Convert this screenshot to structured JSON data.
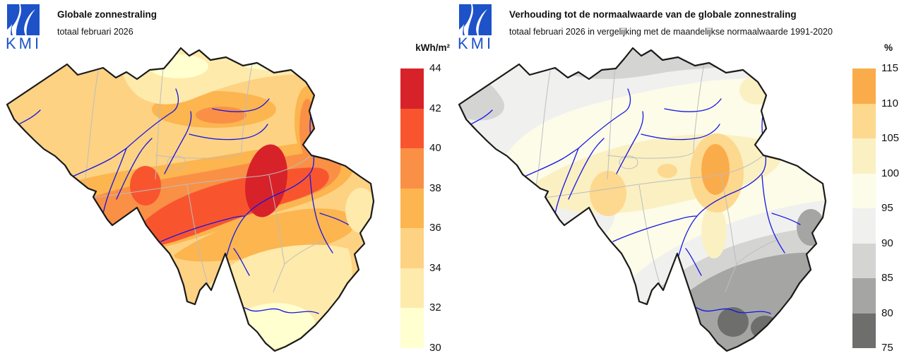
{
  "brand": {
    "logo_text": "KMI"
  },
  "style": {
    "brand_blue": "#1d52c8",
    "river_color": "#1414e8",
    "province_border_color": "#bdbdbd",
    "country_border_color": "#1a1a1a",
    "background": "#ffffff"
  },
  "panels": [
    {
      "title": "Globale zonnestraling",
      "subtitle": "totaal februari 2026",
      "map_description": "Contourkaart van België: totale globale zonnestraling, hoogste waarden (42-44 kWh/m²) ten oosten van Namen, laagste (30-32 kWh/m²) in het uiterste zuiden",
      "legend": {
        "unit": "kWh/m²",
        "labels": [
          "44",
          "42",
          "40",
          "38",
          "36",
          "34",
          "32",
          "30"
        ],
        "scale_values": [
          44,
          42,
          40,
          38,
          36,
          34,
          32,
          30
        ],
        "colors": [
          "#d8222a",
          "#f8552f",
          "#fa9045",
          "#fcb54f",
          "#fdd283",
          "#feeaab",
          "#ffffd0"
        ]
      }
    },
    {
      "title": "Verhouding tot de normaalwaarde van de globale zonnestraling",
      "subtitle": "totaal februari 2026 in vergelijking met de maandelijkse normaalwaarde 1991-2020",
      "map_description": "Contourkaart van België: verhouding tot de normaalwaarde, boven normaal (110-115%) rond Luik, onder normaal (75-80%) in het zuiden van de Ardennen en langs de noordrand",
      "legend": {
        "unit": "%",
        "labels": [
          "115",
          "110",
          "105",
          "100",
          "95",
          "90",
          "85",
          "80",
          "75"
        ],
        "scale_values": [
          115,
          110,
          105,
          100,
          95,
          90,
          85,
          80,
          75
        ],
        "colors": [
          "#fbac4a",
          "#fdd88f",
          "#faf0c2",
          "#fdfce8",
          "#f0f0ee",
          "#d4d4d3",
          "#a5a5a4",
          "#6e6e6d"
        ]
      }
    }
  ]
}
